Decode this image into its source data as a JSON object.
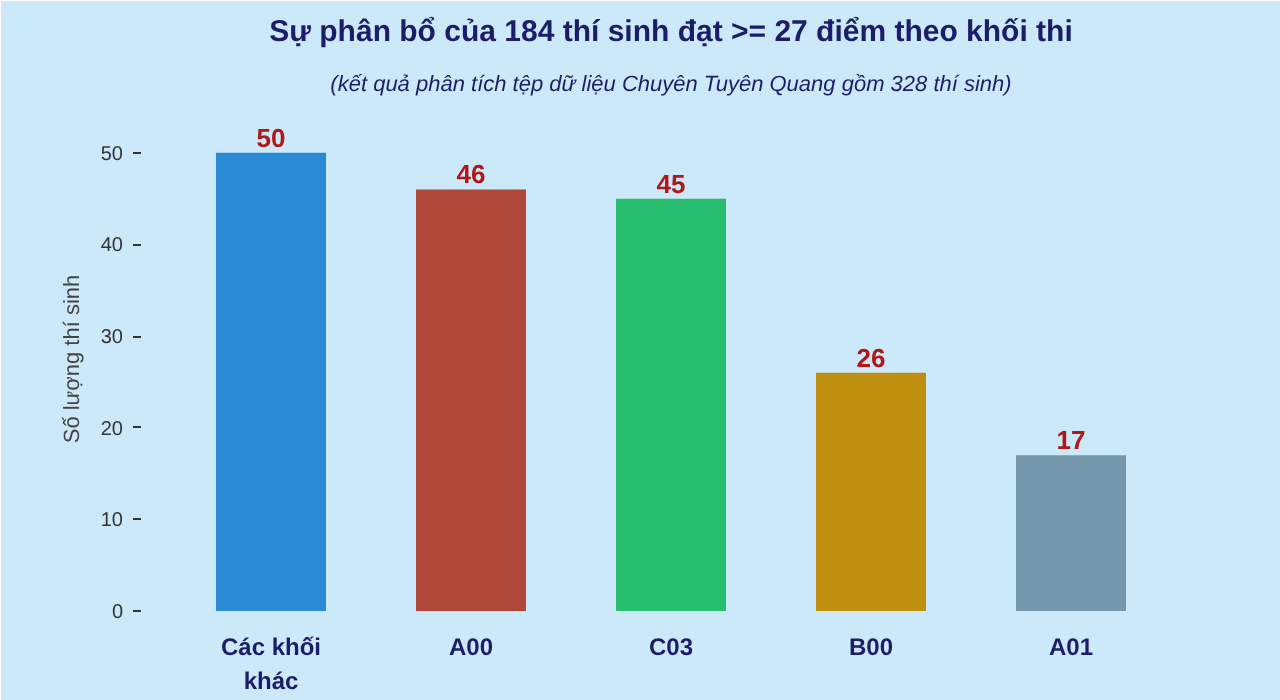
{
  "chart_data": {
    "type": "bar",
    "title": "Sự phân bổ của 184 thí sinh đạt >= 27 điểm theo khối thi",
    "subtitle": "(kết quả phân tích tệp dữ liệu Chuyên Tuyên Quang gồm 328 thí sinh)",
    "ylabel": "Số lượng thí sinh",
    "categories": [
      "Các khối khác",
      "A00",
      "C03",
      "B00",
      "A01"
    ],
    "values": [
      50,
      46,
      45,
      26,
      17
    ],
    "colors": [
      "#2a8ad6",
      "#b0483a",
      "#27bf6f",
      "#bf9010",
      "#7497ab"
    ],
    "ylim": [
      0,
      55
    ],
    "yticks": [
      0,
      10,
      20,
      30,
      40,
      50
    ],
    "grid": false,
    "data_labels": true
  }
}
